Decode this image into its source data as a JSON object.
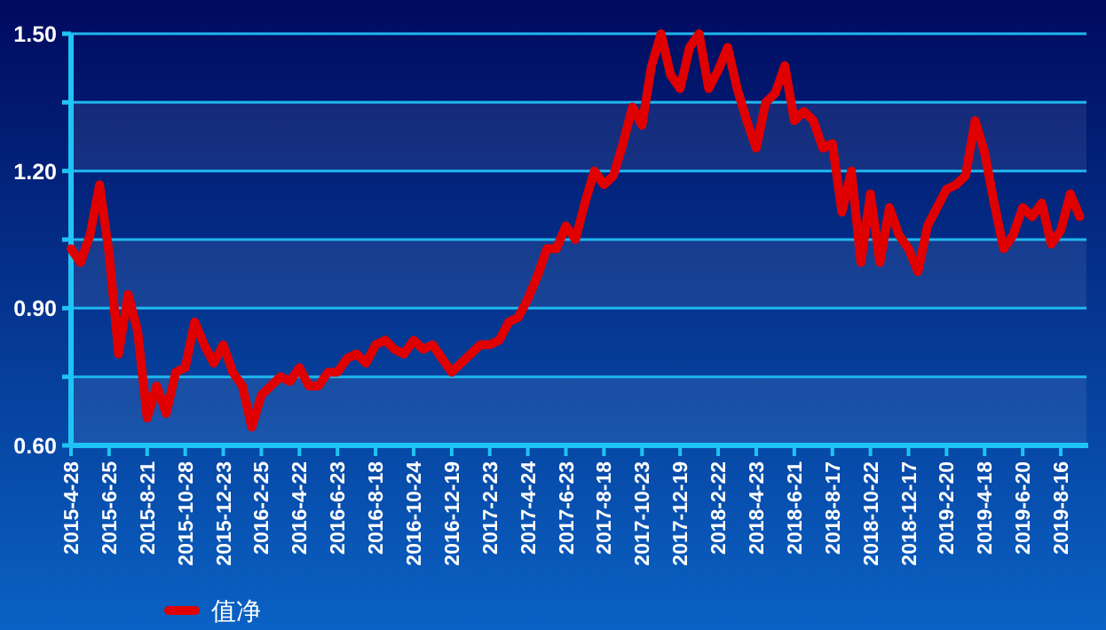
{
  "chart_data": {
    "type": "line",
    "categories": [
      "2015-4-28",
      null,
      null,
      null,
      "2015-6-25",
      null,
      null,
      null,
      "2015-8-21",
      null,
      null,
      null,
      "2015-10-28",
      null,
      null,
      null,
      "2015-12-23",
      null,
      null,
      null,
      "2016-2-25",
      null,
      null,
      null,
      "2016-4-22",
      null,
      null,
      null,
      "2016-6-23",
      null,
      null,
      null,
      "2016-8-18",
      null,
      null,
      null,
      "2016-10-24",
      null,
      null,
      null,
      "2016-12-19",
      null,
      null,
      null,
      "2017-2-23",
      null,
      null,
      null,
      "2017-4-24",
      null,
      null,
      null,
      "2017-6-23",
      null,
      null,
      null,
      "2017-8-18",
      null,
      null,
      null,
      "2017-10-23",
      null,
      null,
      null,
      "2017-12-19",
      null,
      null,
      null,
      "2018-2-22",
      null,
      null,
      null,
      "2018-4-23",
      null,
      null,
      null,
      "2018-6-21",
      null,
      null,
      null,
      "2018-8-17",
      null,
      null,
      null,
      "2018-10-22",
      null,
      null,
      null,
      "2018-12-17",
      null,
      null,
      null,
      "2019-2-20",
      null,
      null,
      null,
      "2019-4-18",
      null,
      null,
      null,
      "2019-6-20",
      null,
      null,
      null,
      "2019-8-16",
      null,
      null
    ],
    "series": [
      {
        "name": "值净",
        "color": "#e00000",
        "values": [
          1.03,
          1.0,
          1.06,
          1.17,
          1.02,
          0.8,
          0.93,
          0.85,
          0.66,
          0.73,
          0.67,
          0.76,
          0.77,
          0.87,
          0.82,
          0.78,
          0.82,
          0.76,
          0.73,
          0.64,
          0.71,
          0.73,
          0.75,
          0.74,
          0.77,
          0.73,
          0.73,
          0.76,
          0.76,
          0.79,
          0.8,
          0.78,
          0.82,
          0.83,
          0.81,
          0.8,
          0.83,
          0.81,
          0.82,
          0.79,
          0.76,
          0.78,
          0.8,
          0.82,
          0.82,
          0.83,
          0.87,
          0.88,
          0.92,
          0.97,
          1.03,
          1.03,
          1.08,
          1.05,
          1.13,
          1.2,
          1.17,
          1.19,
          1.26,
          1.34,
          1.3,
          1.43,
          1.5,
          1.41,
          1.38,
          1.47,
          1.5,
          1.38,
          1.42,
          1.47,
          1.38,
          1.31,
          1.25,
          1.35,
          1.37,
          1.43,
          1.31,
          1.33,
          1.31,
          1.25,
          1.26,
          1.11,
          1.2,
          1.0,
          1.15,
          1.0,
          1.12,
          1.06,
          1.03,
          0.98,
          1.08,
          1.12,
          1.16,
          1.17,
          1.19,
          1.31,
          1.24,
          1.13,
          1.03,
          1.06,
          1.12,
          1.1,
          1.13,
          1.04,
          1.07,
          1.15,
          1.1
        ]
      }
    ],
    "ylim": [
      0.6,
      1.5
    ],
    "yticks": [
      {
        "value": 0.6,
        "label": "0.60"
      },
      {
        "value": 0.75,
        "label": null
      },
      {
        "value": 0.9,
        "label": "0.90"
      },
      {
        "value": 1.05,
        "label": null
      },
      {
        "value": 1.2,
        "label": "1.20"
      },
      {
        "value": 1.35,
        "label": null
      },
      {
        "value": 1.5,
        "label": "1.50"
      }
    ],
    "grid": "y",
    "legend": "bottom"
  }
}
